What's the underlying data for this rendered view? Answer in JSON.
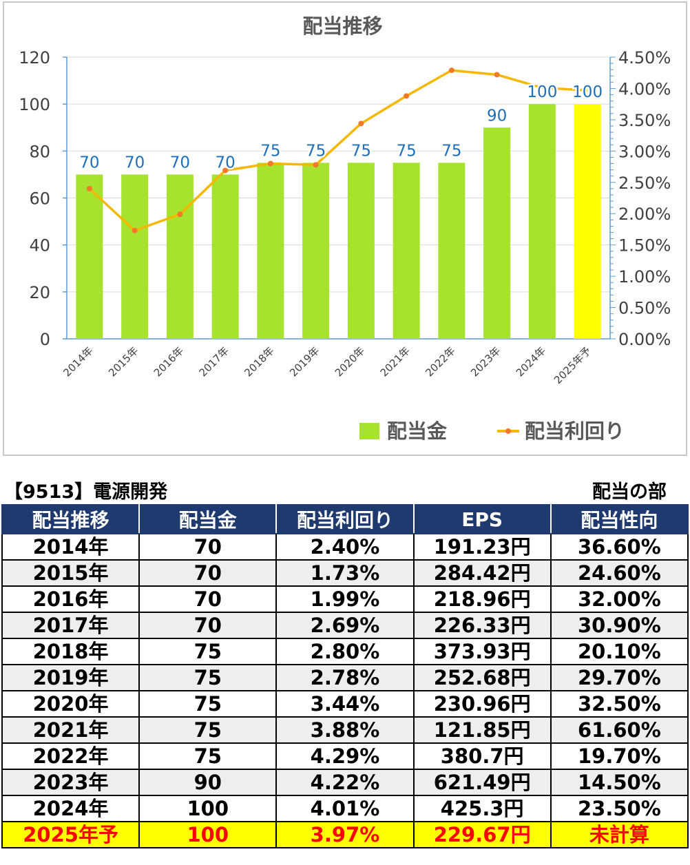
{
  "chart_data": {
    "type": "bar",
    "title": "配当推移",
    "categories": [
      "2014年",
      "2015年",
      "2016年",
      "2017年",
      "2018年",
      "2019年",
      "2020年",
      "2021年",
      "2022年",
      "2023年",
      "2024年",
      "2025年予"
    ],
    "series": [
      {
        "name": "配当金",
        "type": "bar",
        "axis": "left",
        "values": [
          70,
          70,
          70,
          70,
          75,
          75,
          75,
          75,
          75,
          90,
          100,
          100
        ],
        "color": "#a6e22e",
        "highlight_last_color": "#ffff00"
      },
      {
        "name": "配当利回り",
        "type": "line",
        "axis": "right",
        "values": [
          2.4,
          1.73,
          1.99,
          2.69,
          2.8,
          2.78,
          3.44,
          3.88,
          4.29,
          4.22,
          4.01,
          3.97
        ],
        "color": "#f5b800",
        "marker_color": "#f07a2a"
      }
    ],
    "data_labels": [
      "70",
      "70",
      "70",
      "70",
      "75",
      "75",
      "75",
      "75",
      "75",
      "90",
      "100",
      "100"
    ],
    "ylim_left": [
      0,
      120
    ],
    "yticks_left": [
      "0",
      "20",
      "40",
      "60",
      "80",
      "100",
      "120"
    ],
    "ylim_right": [
      0,
      4.5
    ],
    "yticks_right": [
      "0.00%",
      "0.50%",
      "1.00%",
      "1.50%",
      "2.00%",
      "2.50%",
      "3.00%",
      "3.50%",
      "4.00%",
      "4.50%"
    ],
    "grid": true,
    "legend_position": "bottom-right",
    "label_color": "#1f6fb8",
    "axis_color": "#5b9bd5"
  },
  "company_label": "【9513】電源開発",
  "section_label": "配当の部",
  "table": {
    "headers": [
      "配当推移",
      "配当金",
      "配当利回り",
      "EPS",
      "配当性向"
    ],
    "rows": [
      [
        "2014年",
        "70",
        "2.40%",
        "191.23円",
        "36.60%"
      ],
      [
        "2015年",
        "70",
        "1.73%",
        "284.42円",
        "24.60%"
      ],
      [
        "2016年",
        "70",
        "1.99%",
        "218.96円",
        "32.00%"
      ],
      [
        "2017年",
        "70",
        "2.69%",
        "226.33円",
        "30.90%"
      ],
      [
        "2018年",
        "75",
        "2.80%",
        "373.93円",
        "20.10%"
      ],
      [
        "2019年",
        "75",
        "2.78%",
        "252.68円",
        "29.70%"
      ],
      [
        "2020年",
        "75",
        "3.44%",
        "230.96円",
        "32.50%"
      ],
      [
        "2021年",
        "75",
        "3.88%",
        "121.85円",
        "61.60%"
      ],
      [
        "2022年",
        "75",
        "4.29%",
        "380.7円",
        "19.70%"
      ],
      [
        "2023年",
        "90",
        "4.22%",
        "621.49円",
        "14.50%"
      ],
      [
        "2024年",
        "100",
        "4.01%",
        "425.3円",
        "23.50%"
      ],
      [
        "2025年予",
        "100",
        "3.97%",
        "229.67円",
        "未計算"
      ]
    ]
  }
}
